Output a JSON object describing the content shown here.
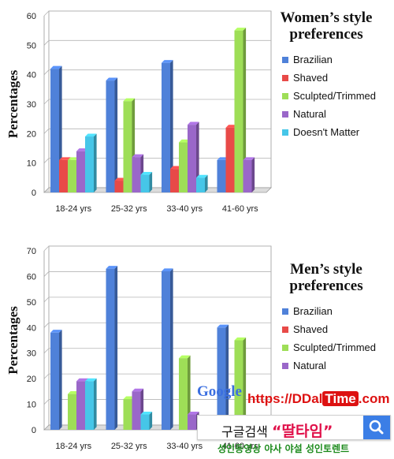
{
  "chart_data": [
    {
      "type": "bar",
      "title": "Women’s style preferences",
      "title_lines": [
        "Women’s style",
        "preferences"
      ],
      "ylabel": "Percentages",
      "xlabel": "",
      "categories": [
        "18-24 yrs",
        "25-32 yrs",
        "33-40 yrs",
        "41-60 yrs"
      ],
      "ylim": [
        0,
        60
      ],
      "yticks": [
        "0",
        "10",
        "20",
        "30",
        "40",
        "50",
        "60"
      ],
      "grid": true,
      "legend_position": "right",
      "series": [
        {
          "name": "Brazilian",
          "color": "#4f81d9",
          "values": [
            42,
            38,
            44,
            11
          ]
        },
        {
          "name": "Shaved",
          "color": "#e84a48",
          "values": [
            11,
            4,
            8,
            22
          ]
        },
        {
          "name": "Sculpted/Trimmed",
          "color": "#9ede57",
          "values": [
            11,
            31,
            17,
            55
          ]
        },
        {
          "name": "Natural",
          "color": "#9a67c9",
          "values": [
            14,
            12,
            23,
            11
          ]
        },
        {
          "name": "Doesn't Matter",
          "color": "#46c6e8",
          "values": [
            19,
            6,
            5,
            0
          ]
        }
      ]
    },
    {
      "type": "bar",
      "title": "Men’s style preferences",
      "title_lines": [
        "Men’s style",
        "preferences"
      ],
      "ylabel": "Percentages",
      "xlabel": "",
      "categories": [
        "18-24 yrs",
        "25-32 yrs",
        "33-40 yrs",
        "41-60 yrs"
      ],
      "ylim": [
        0,
        70
      ],
      "yticks": [
        "0",
        "10",
        "20",
        "30",
        "40",
        "50",
        "60",
        "70"
      ],
      "grid": true,
      "legend_position": "right",
      "series": [
        {
          "name": "Brazilian",
          "color": "#4f81d9",
          "values": [
            38,
            63,
            62,
            40
          ]
        },
        {
          "name": "Shaved",
          "color": "#e84a48",
          "values": [
            0,
            0,
            0,
            0
          ]
        },
        {
          "name": "Sculpted/Trimmed",
          "color": "#9ede57",
          "values": [
            14,
            12,
            28,
            35
          ]
        },
        {
          "name": "Natural",
          "color": "#9a67c9",
          "values": [
            19,
            15,
            6,
            0
          ]
        },
        {
          "name": "Doesn't Matter",
          "color": "#46c6e8",
          "values": [
            19,
            6,
            0,
            0
          ]
        }
      ]
    }
  ],
  "watermark": {
    "google": "Google",
    "url_prefix": "https://DDal",
    "url_time": "Time",
    "url_suffix": ".com",
    "search_text": "구글검색",
    "search_bold": "딸타임",
    "caption": "성인동영상 야사 야설 성인토렌트"
  }
}
